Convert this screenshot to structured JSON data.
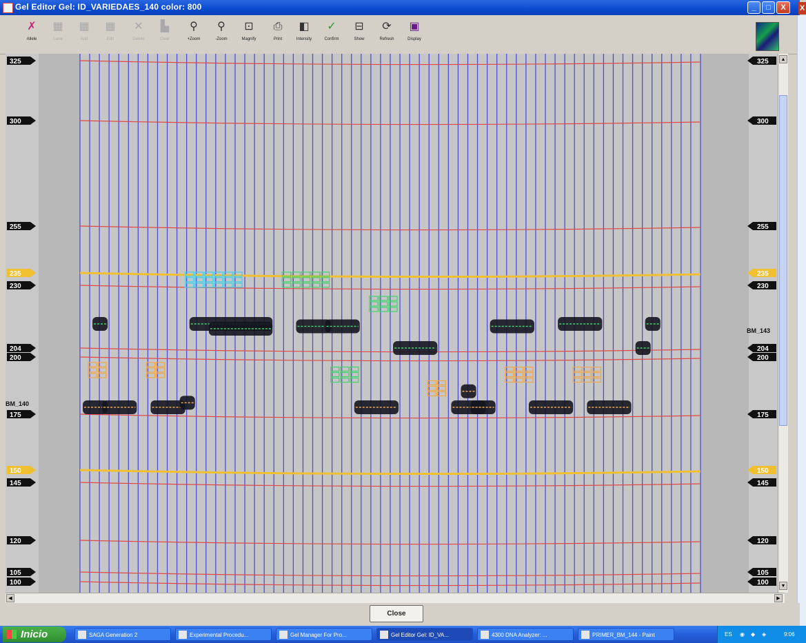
{
  "window": {
    "title": "Gel Editor Gel: ID_VARIEDAES_140 color: 800",
    "controls": {
      "minimize": "_",
      "maximize": "□",
      "close": "X"
    }
  },
  "toolbar": {
    "tools": [
      {
        "label": "Allele",
        "icon": "allele-icon",
        "enabled": true
      },
      {
        "label": "Lane",
        "icon": "lane-icon",
        "enabled": false
      },
      {
        "label": "Add",
        "icon": "add-icon",
        "enabled": false
      },
      {
        "label": "Edit",
        "icon": "edit-icon",
        "enabled": false
      },
      {
        "label": "Delete",
        "icon": "delete-icon",
        "enabled": false
      },
      {
        "label": "Clear",
        "icon": "clear-icon",
        "enabled": false
      },
      {
        "label": "+Zoom",
        "icon": "zoom-in-icon",
        "enabled": true
      },
      {
        "label": "-Zoom",
        "icon": "zoom-out-icon",
        "enabled": true
      },
      {
        "label": "Magnify",
        "icon": "magnify-icon",
        "enabled": true
      },
      {
        "label": "Print",
        "icon": "print-icon",
        "enabled": true
      },
      {
        "label": "Intensity",
        "icon": "intensity-icon",
        "enabled": true
      },
      {
        "label": "Confirm",
        "icon": "confirm-icon",
        "enabled": true
      },
      {
        "label": "Show",
        "icon": "show-icon",
        "enabled": true
      },
      {
        "label": "Refresh",
        "icon": "refresh-icon",
        "enabled": true
      },
      {
        "label": "Display",
        "icon": "display-icon",
        "enabled": true
      }
    ]
  },
  "gel": {
    "lane_count": 64,
    "size_markers_left": [
      {
        "label": "325",
        "size": 325,
        "color": "black"
      },
      {
        "label": "300",
        "size": 300,
        "color": "black"
      },
      {
        "label": "255",
        "size": 255,
        "color": "black"
      },
      {
        "label": "235",
        "size": 235,
        "color": "yellow"
      },
      {
        "label": "230",
        "size": 230,
        "color": "black"
      },
      {
        "label": "204",
        "size": 204,
        "color": "black"
      },
      {
        "label": "200",
        "size": 200,
        "color": "black"
      },
      {
        "label": "175",
        "size": 175,
        "color": "black"
      },
      {
        "label": "150",
        "size": 150,
        "color": "yellow"
      },
      {
        "label": "145",
        "size": 145,
        "color": "black"
      },
      {
        "label": "120",
        "size": 120,
        "color": "black"
      },
      {
        "label": "105",
        "size": 105,
        "color": "black"
      },
      {
        "label": "100",
        "size": 100,
        "color": "black"
      }
    ],
    "size_markers_right": [
      {
        "label": "325",
        "size": 325,
        "color": "black"
      },
      {
        "label": "300",
        "size": 300,
        "color": "black"
      },
      {
        "label": "255",
        "size": 255,
        "color": "black"
      },
      {
        "label": "235",
        "size": 235,
        "color": "yellow"
      },
      {
        "label": "230",
        "size": 230,
        "color": "black"
      },
      {
        "label": "204",
        "size": 204,
        "color": "black"
      },
      {
        "label": "200",
        "size": 200,
        "color": "black"
      },
      {
        "label": "175",
        "size": 175,
        "color": "black"
      },
      {
        "label": "150",
        "size": 150,
        "color": "yellow"
      },
      {
        "label": "145",
        "size": 145,
        "color": "black"
      },
      {
        "label": "120",
        "size": 120,
        "color": "black"
      },
      {
        "label": "105",
        "size": 105,
        "color": "black"
      },
      {
        "label": "100",
        "size": 100,
        "color": "black"
      }
    ],
    "primer_labels": {
      "left": "BM_140",
      "right": "BM_143"
    },
    "colors": {
      "lane_line": "#3a3ad8",
      "size_line": "#e04848",
      "ref_line": "#f0c030",
      "background": "#c6c6c6",
      "band": "#151520",
      "allele_cyan": "#40d0e8",
      "allele_green": "#3ed66a",
      "allele_orange": "#f0a848"
    }
  },
  "close_button": {
    "label": "Close"
  },
  "taskbar": {
    "start_label": "Inicio",
    "tasks": [
      {
        "label": "SAGA Generation 2"
      },
      {
        "label": "Experimental Procedu..."
      },
      {
        "label": "Gel Manager For Pro..."
      },
      {
        "label": "Gel Editor Gel: ID_VA..."
      },
      {
        "label": "4300 DNA Analyzer: ..."
      },
      {
        "label": "PRIMER_BM_144 - Paint"
      }
    ],
    "tray_lang": "ES",
    "clock": "9:06"
  }
}
